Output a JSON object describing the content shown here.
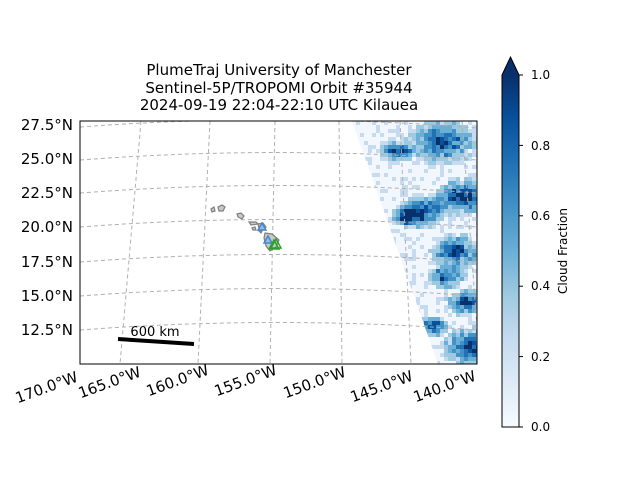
{
  "title": {
    "line1": "PlumeTraj    University of Manchester",
    "line2": "Sentinel-5P/TROPOMI Orbit #35944",
    "line3": "2024-09-19   22:04-22:10 UTC   Kilauea"
  },
  "map": {
    "lat_labels": [
      "27.5°N",
      "25.0°N",
      "22.5°N",
      "20.0°N",
      "17.5°N",
      "15.0°N",
      "12.5°N"
    ],
    "lon_labels": [
      "170.0°W",
      "165.0°W",
      "160.0°W",
      "155.0°W",
      "150.0°W",
      "145.0°W",
      "140.0°W"
    ],
    "scale_bar_label": "600 km",
    "gridline_style": "dashed-gray",
    "coastline_color": "#7f7f7f",
    "swath_colormap": "Blues",
    "volcano_marker_color": "#2ca02c"
  },
  "colorbar": {
    "label": "Cloud Fraction",
    "ticks": [
      "0.0",
      "0.2",
      "0.4",
      "0.6",
      "0.8",
      "1.0"
    ],
    "min": 0.0,
    "max": 1.0,
    "extend": "max",
    "colormap": "Blues",
    "color_low": "#f7fbff",
    "color_high": "#08306b"
  }
}
